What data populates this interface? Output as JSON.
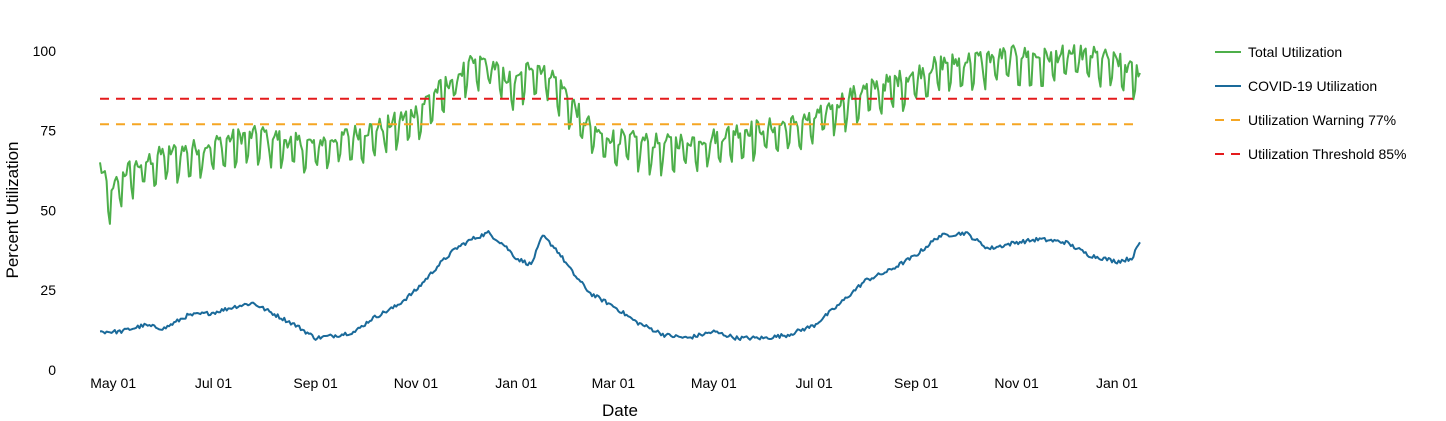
{
  "chart_data": {
    "type": "line",
    "title": "",
    "xlabel": "Date",
    "ylabel": "Percent Utilization",
    "x_range": [
      "2020-04-23",
      "2022-01-15"
    ],
    "ylim": [
      0,
      105
    ],
    "y_ticks": [
      0,
      25,
      50,
      75,
      100
    ],
    "x_ticks": [
      {
        "date": "2020-05-01",
        "label": "May 01"
      },
      {
        "date": "2020-07-01",
        "label": "Jul 01"
      },
      {
        "date": "2020-09-01",
        "label": "Sep 01"
      },
      {
        "date": "2020-11-01",
        "label": "Nov 01"
      },
      {
        "date": "2021-01-01",
        "label": "Jan 01"
      },
      {
        "date": "2021-03-01",
        "label": "Mar 01"
      },
      {
        "date": "2021-05-01",
        "label": "May 01"
      },
      {
        "date": "2021-07-01",
        "label": "Jul 01"
      },
      {
        "date": "2021-09-01",
        "label": "Sep 01"
      },
      {
        "date": "2021-11-01",
        "label": "Nov 01"
      },
      {
        "date": "2022-01-01",
        "label": "Jan 01"
      }
    ],
    "grid": false,
    "legend_position": "right",
    "series": [
      {
        "name": "Total Utilization",
        "color": "#4daf4a",
        "style": "solid",
        "points": [
          [
            "2020-04-23",
            62
          ],
          [
            "2020-04-27",
            56
          ],
          [
            "2020-04-30",
            52
          ],
          [
            "2020-05-03",
            57
          ],
          [
            "2020-05-10",
            61
          ],
          [
            "2020-05-20",
            63
          ],
          [
            "2020-06-01",
            66
          ],
          [
            "2020-06-15",
            67
          ],
          [
            "2020-07-01",
            69
          ],
          [
            "2020-07-15",
            71
          ],
          [
            "2020-08-01",
            72
          ],
          [
            "2020-08-15",
            70
          ],
          [
            "2020-08-25",
            69
          ],
          [
            "2020-09-01",
            69
          ],
          [
            "2020-09-15",
            71
          ],
          [
            "2020-10-01",
            73
          ],
          [
            "2020-10-15",
            75
          ],
          [
            "2020-11-01",
            79
          ],
          [
            "2020-11-10",
            84
          ],
          [
            "2020-11-25",
            90
          ],
          [
            "2020-12-05",
            94
          ],
          [
            "2020-12-15",
            95
          ],
          [
            "2020-12-25",
            90
          ],
          [
            "2021-01-01",
            88
          ],
          [
            "2021-01-10",
            94
          ],
          [
            "2021-01-20",
            92
          ],
          [
            "2021-01-31",
            85
          ],
          [
            "2021-02-10",
            77
          ],
          [
            "2021-02-20",
            72
          ],
          [
            "2021-03-01",
            71
          ],
          [
            "2021-03-15",
            70
          ],
          [
            "2021-04-01",
            69
          ],
          [
            "2021-04-15",
            70
          ],
          [
            "2021-05-01",
            71
          ],
          [
            "2021-05-15",
            73
          ],
          [
            "2021-06-01",
            74
          ],
          [
            "2021-06-15",
            75
          ],
          [
            "2021-07-01",
            77
          ],
          [
            "2021-07-15",
            82
          ],
          [
            "2021-08-01",
            86
          ],
          [
            "2021-08-15",
            88
          ],
          [
            "2021-09-01",
            91
          ],
          [
            "2021-09-15",
            94
          ],
          [
            "2021-10-01",
            95
          ],
          [
            "2021-10-15",
            96
          ],
          [
            "2021-11-01",
            97
          ],
          [
            "2021-11-15",
            96
          ],
          [
            "2021-12-01",
            97
          ],
          [
            "2021-12-15",
            97
          ],
          [
            "2022-01-01",
            95
          ],
          [
            "2022-01-10",
            92
          ],
          [
            "2022-01-15",
            92
          ]
        ]
      },
      {
        "name": "COVID-19 Utilization",
        "color": "#1a6a9a",
        "style": "solid",
        "points": [
          [
            "2020-04-23",
            12
          ],
          [
            "2020-05-05",
            12
          ],
          [
            "2020-05-20",
            14
          ],
          [
            "2020-06-01",
            13
          ],
          [
            "2020-06-15",
            17
          ],
          [
            "2020-07-01",
            18
          ],
          [
            "2020-07-15",
            20
          ],
          [
            "2020-07-25",
            21
          ],
          [
            "2020-08-05",
            18
          ],
          [
            "2020-08-20",
            14
          ],
          [
            "2020-09-01",
            10
          ],
          [
            "2020-09-15",
            11
          ],
          [
            "2020-09-25",
            12
          ],
          [
            "2020-10-05",
            16
          ],
          [
            "2020-10-20",
            20
          ],
          [
            "2020-11-01",
            25
          ],
          [
            "2020-11-15",
            33
          ],
          [
            "2020-11-25",
            38
          ],
          [
            "2020-12-05",
            41
          ],
          [
            "2020-12-15",
            43
          ],
          [
            "2020-12-25",
            39
          ],
          [
            "2021-01-01",
            35
          ],
          [
            "2021-01-10",
            33
          ],
          [
            "2021-01-17",
            42
          ],
          [
            "2021-01-25",
            38
          ],
          [
            "2021-02-05",
            30
          ],
          [
            "2021-02-15",
            24
          ],
          [
            "2021-03-01",
            20
          ],
          [
            "2021-03-15",
            15
          ],
          [
            "2021-04-01",
            11
          ],
          [
            "2021-04-15",
            10
          ],
          [
            "2021-05-01",
            12
          ],
          [
            "2021-05-15",
            10
          ],
          [
            "2021-06-01",
            10
          ],
          [
            "2021-06-15",
            11
          ],
          [
            "2021-07-01",
            14
          ],
          [
            "2021-07-15",
            20
          ],
          [
            "2021-08-01",
            28
          ],
          [
            "2021-08-15",
            31
          ],
          [
            "2021-09-01",
            36
          ],
          [
            "2021-09-15",
            42
          ],
          [
            "2021-10-01",
            43
          ],
          [
            "2021-10-15",
            38
          ],
          [
            "2021-11-01",
            40
          ],
          [
            "2021-11-15",
            41
          ],
          [
            "2021-12-01",
            40
          ],
          [
            "2021-12-15",
            36
          ],
          [
            "2022-01-01",
            34
          ],
          [
            "2022-01-10",
            35
          ],
          [
            "2022-01-15",
            40
          ]
        ]
      },
      {
        "name": "Utilization Warning 77%",
        "color": "#f5a623",
        "style": "dashed",
        "points": [
          [
            "2020-04-23",
            77
          ],
          [
            "2022-01-15",
            77
          ]
        ]
      },
      {
        "name": "Utilization Threshold 85%",
        "color": "#e41a1c",
        "style": "dashed",
        "points": [
          [
            "2020-04-23",
            85
          ],
          [
            "2022-01-15",
            85
          ]
        ]
      }
    ]
  }
}
